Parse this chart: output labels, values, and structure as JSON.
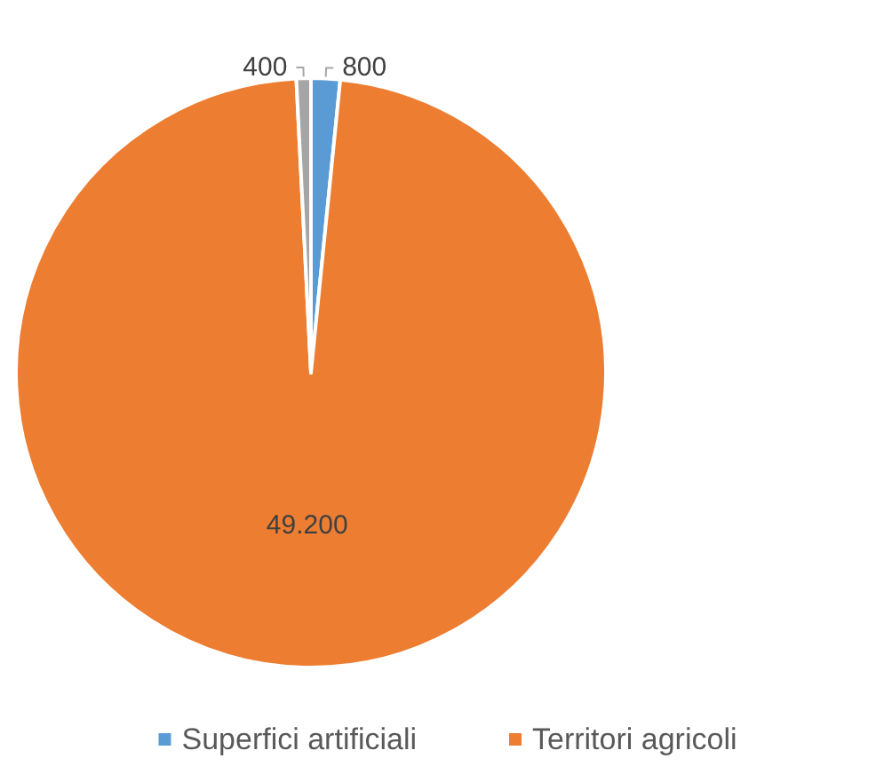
{
  "chart_data": {
    "type": "pie",
    "categories": [
      "Superfici artificiali",
      "Territori agricoli",
      null
    ],
    "values": [
      800,
      49200,
      400
    ],
    "value_labels": [
      "800",
      "49.200",
      "400"
    ],
    "colors": [
      "#5b9bd5",
      "#ed7d31",
      "#a5a5a5"
    ],
    "legend": "bottom"
  }
}
